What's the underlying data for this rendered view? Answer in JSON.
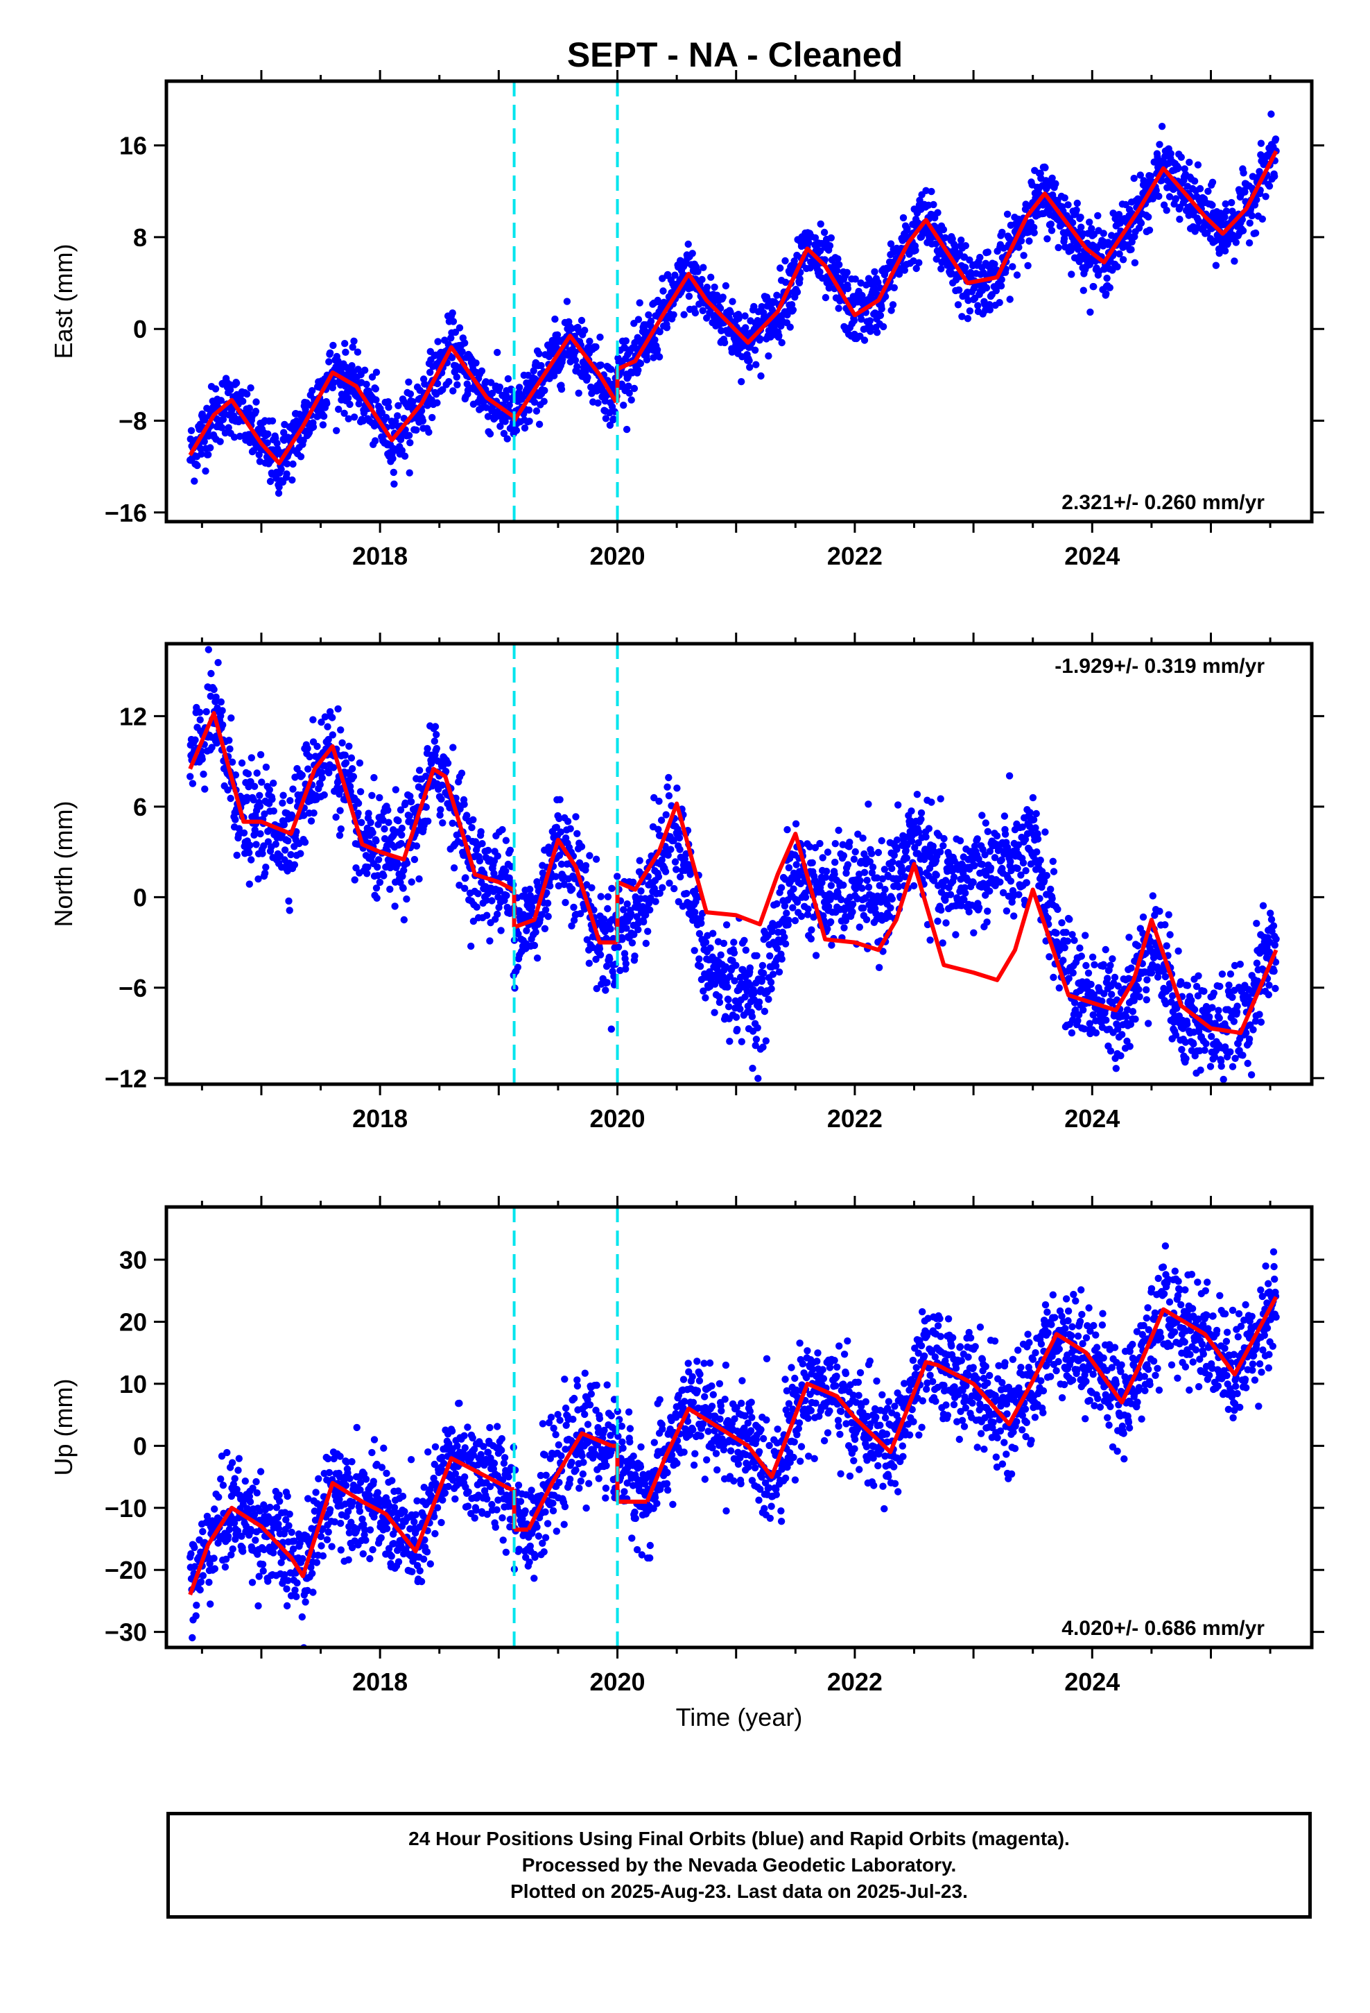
{
  "title": "SEPT  - NA - Cleaned",
  "colors": {
    "points": "#0000ff",
    "model": "#ff0000",
    "breaks": "#00e5ee",
    "frame": "#000000"
  },
  "xaxis": {
    "label": "Time (year)",
    "range": [
      2016.2,
      2025.85
    ],
    "ticks": [
      2018,
      2020,
      2022,
      2024
    ],
    "minor_step": 0.5
  },
  "breaks": [
    2019.13,
    2020.0
  ],
  "chart_data": [
    {
      "type": "scatter",
      "name": "east",
      "ylabel": "East (mm)",
      "ylim": [
        -16.8,
        21.6
      ],
      "yticks": [
        -16,
        -8,
        0,
        8,
        16
      ],
      "rate_text": "2.321+/- 0.260 mm/yr",
      "rate_position": "bottom-right",
      "model": {
        "x": [
          2016.4,
          2016.6,
          2016.75,
          2017.0,
          2017.15,
          2017.35,
          2017.6,
          2017.8,
          2018.1,
          2018.35,
          2018.6,
          2018.9,
          2019.12,
          2019.13,
          2019.35,
          2019.6,
          2019.85,
          2019.99,
          2020.0,
          2020.15,
          2020.4,
          2020.6,
          2020.75,
          2021.1,
          2021.35,
          2021.6,
          2021.75,
          2022.0,
          2022.2,
          2022.45,
          2022.6,
          2022.95,
          2023.2,
          2023.45,
          2023.6,
          2023.95,
          2024.1,
          2024.4,
          2024.6,
          2024.95,
          2025.1,
          2025.3,
          2025.55
        ],
        "y": [
          -11.0,
          -7.5,
          -6.2,
          -10.0,
          -11.7,
          -8.5,
          -3.8,
          -5.0,
          -9.7,
          -6.5,
          -1.6,
          -6.0,
          -7.6,
          -8.0,
          -4.5,
          -0.6,
          -4.0,
          -6.4,
          -3.5,
          -2.8,
          1.5,
          4.8,
          2.5,
          -1.2,
          1.5,
          7.0,
          5.5,
          1.2,
          2.5,
          7.5,
          9.5,
          4.0,
          4.5,
          9.8,
          11.8,
          7.0,
          5.8,
          10.5,
          14.0,
          9.8,
          8.3,
          10.5,
          15.5
        ]
      },
      "points": {
        "count": 2600,
        "scatter": 1.4
      }
    },
    {
      "type": "scatter",
      "name": "north",
      "ylabel": "North (mm)",
      "ylim": [
        -12.4,
        16.8
      ],
      "yticks": [
        -12,
        -6,
        0,
        6,
        12
      ],
      "rate_text": "-1.929+/- 0.319 mm/yr",
      "rate_position": "top-right",
      "model": {
        "x": [
          2016.4,
          2016.6,
          2016.85,
          2017.0,
          2017.25,
          2017.45,
          2017.6,
          2017.85,
          2018.0,
          2018.2,
          2018.45,
          2018.55,
          2018.8,
          2019.0,
          2019.12,
          2019.13,
          2019.3,
          2019.5,
          2019.65,
          2019.85,
          2019.99,
          2020.0,
          2020.15,
          2020.35,
          2020.5,
          2020.75,
          2021.0,
          2021.2,
          2021.35,
          2021.5,
          2021.75,
          2022.0,
          2022.2,
          2022.35,
          2022.5,
          2022.75,
          2023.0,
          2023.2,
          2023.35,
          2023.5,
          2023.8,
          2024.0,
          2024.2,
          2024.35,
          2024.5,
          2024.75,
          2025.0,
          2025.25,
          2025.55
        ],
        "y": [
          8.5,
          12.2,
          5.0,
          5.0,
          4.2,
          8.5,
          10.0,
          3.5,
          3.0,
          2.5,
          8.5,
          8.0,
          1.5,
          1.0,
          0.5,
          -2.0,
          -1.5,
          3.8,
          2.0,
          -3.0,
          -3.0,
          1.0,
          0.5,
          3.0,
          6.2,
          -1.0,
          -1.2,
          -1.8,
          1.5,
          4.2,
          -2.8,
          -3.0,
          -3.5,
          -1.5,
          2.2,
          -4.5,
          -5.0,
          -5.5,
          -3.5,
          0.5,
          -6.5,
          -7.0,
          -7.5,
          -5.5,
          -1.5,
          -7.2,
          -8.7,
          -9.0,
          -3.5
        ]
      },
      "points": {
        "count": 2600,
        "scatter": 1.7
      }
    },
    {
      "type": "scatter",
      "name": "up",
      "ylabel": "Up (mm)",
      "ylim": [
        -32.5,
        38.5
      ],
      "yticks": [
        -30,
        -20,
        -10,
        0,
        10,
        20,
        30
      ],
      "rate_text": "4.020+/- 0.686 mm/yr",
      "rate_position": "bottom-right",
      "model": {
        "x": [
          2016.4,
          2016.55,
          2016.75,
          2017.0,
          2017.25,
          2017.35,
          2017.6,
          2017.85,
          2018.05,
          2018.3,
          2018.6,
          2018.9,
          2019.1,
          2019.25,
          2019.45,
          2019.7,
          2019.95,
          2020.25,
          2020.4,
          2020.6,
          2020.85,
          2021.1,
          2021.3,
          2021.6,
          2021.85,
          2022.0,
          2022.3,
          2022.6,
          2022.7,
          2023.0,
          2023.3,
          2023.5,
          2023.7,
          2023.95,
          2024.25,
          2024.4,
          2024.6,
          2024.95,
          2025.2,
          2025.55
        ],
        "y": [
          -24.0,
          -16.0,
          -10.0,
          -13.0,
          -18.0,
          -21.0,
          -6.0,
          -9.0,
          -11.0,
          -17.0,
          -2.0,
          -5.0,
          -7.0,
          -13.5,
          -6.0,
          2.0,
          0.0,
          -9.0,
          -2.0,
          6.0,
          3.0,
          0.0,
          -5.0,
          10.0,
          8.0,
          4.5,
          -1.0,
          13.5,
          13.0,
          10.0,
          3.5,
          10.5,
          18.0,
          15.0,
          7.0,
          13.0,
          22.0,
          18.0,
          11.5,
          24.0
        ]
      },
      "points": {
        "count": 2600,
        "scatter": 4.2
      }
    }
  ],
  "footer": {
    "line1": "24 Hour Positions Using Final Orbits (blue) and Rapid Orbits (magenta).",
    "line2": "Processed by the Nevada Geodetic Laboratory.",
    "line3": "Plotted on 2025-Aug-23. Last data on 2025-Jul-23."
  }
}
